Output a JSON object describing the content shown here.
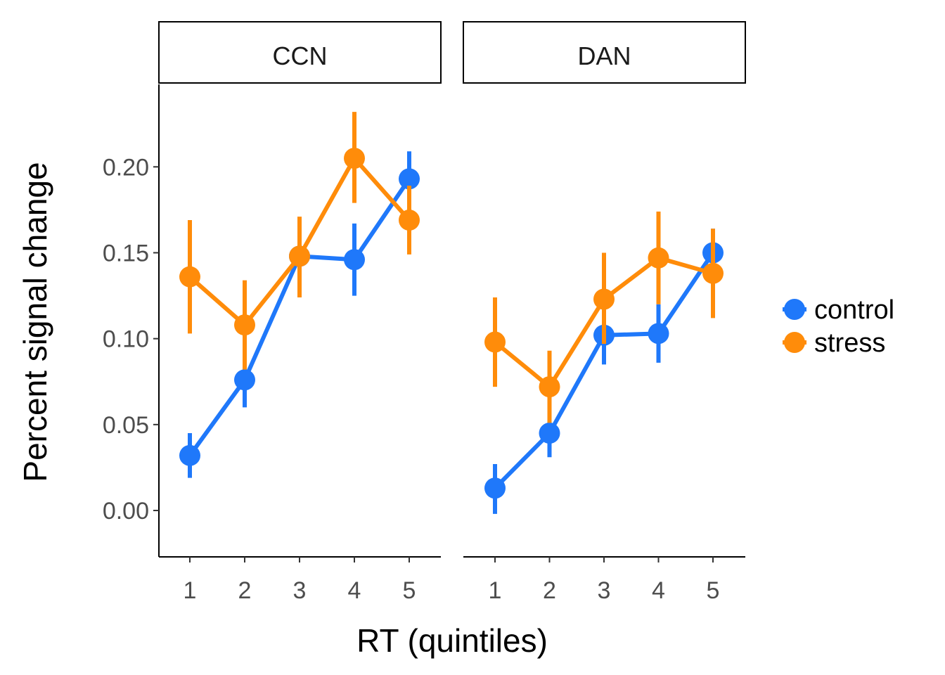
{
  "chart_data": {
    "type": "line",
    "xlabel": "RT (quintiles)",
    "ylabel": "Percent signal change",
    "categories": [
      "1",
      "2",
      "3",
      "4",
      "5"
    ],
    "ylim": [
      -0.027,
      0.248
    ],
    "yticks": [
      0.0,
      0.05,
      0.1,
      0.15,
      0.2
    ],
    "ytick_labels": [
      "0.00",
      "0.05",
      "0.10",
      "0.15",
      "0.20"
    ],
    "grid": false,
    "legend_position": "right",
    "series_colors": {
      "control": "#1f78fa",
      "stress": "#ff8c0a"
    },
    "panels": [
      {
        "strip": "CCN",
        "series": [
          {
            "name": "control",
            "values": [
              0.032,
              0.076,
              0.148,
              0.146,
              0.193
            ],
            "lower": [
              0.019,
              0.06,
              0.128,
              0.125,
              0.177
            ],
            "upper": [
              0.045,
              0.092,
              0.168,
              0.167,
              0.209
            ]
          },
          {
            "name": "stress",
            "values": [
              0.136,
              0.108,
              0.148,
              0.205,
              0.169
            ],
            "lower": [
              0.103,
              0.082,
              0.124,
              0.179,
              0.149
            ],
            "upper": [
              0.169,
              0.134,
              0.171,
              0.232,
              0.189
            ]
          }
        ]
      },
      {
        "strip": "DAN",
        "series": [
          {
            "name": "control",
            "values": [
              0.013,
              0.045,
              0.102,
              0.103,
              0.15
            ],
            "lower": [
              -0.002,
              0.031,
              0.085,
              0.086,
              0.136
            ],
            "upper": [
              0.027,
              0.06,
              0.119,
              0.12,
              0.164
            ]
          },
          {
            "name": "stress",
            "values": [
              0.098,
              0.072,
              0.123,
              0.147,
              0.138
            ],
            "lower": [
              0.072,
              0.051,
              0.097,
              0.12,
              0.112
            ],
            "upper": [
              0.124,
              0.093,
              0.15,
              0.174,
              0.164
            ]
          }
        ]
      }
    ]
  }
}
